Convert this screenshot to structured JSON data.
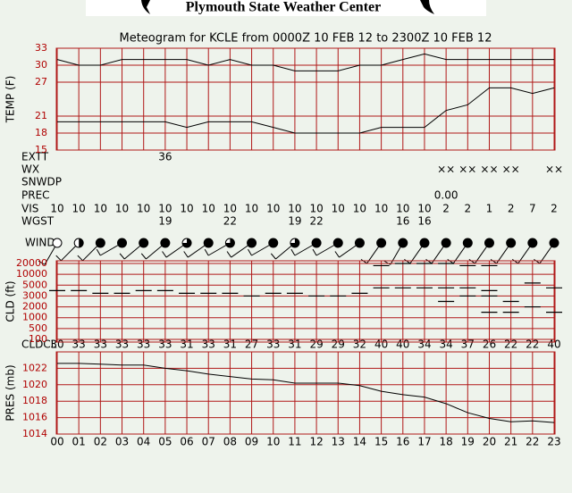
{
  "header": {
    "title": "Plymouth State Weather Center"
  },
  "title": "Meteogram for KCLE from 0000Z 10 FEB 12 to 2300Z 10 FEB 12",
  "categories": [
    "00",
    "01",
    "02",
    "03",
    "04",
    "05",
    "06",
    "07",
    "08",
    "09",
    "10",
    "11",
    "12",
    "13",
    "14",
    "15",
    "16",
    "17",
    "18",
    "19",
    "20",
    "21",
    "22",
    "23"
  ],
  "rows": [
    {
      "label": "EXTT",
      "values": [
        null,
        null,
        null,
        null,
        null,
        36,
        null,
        null,
        null,
        null,
        null,
        null,
        null,
        null,
        null,
        null,
        null,
        null,
        null,
        null,
        null,
        null,
        null,
        null
      ]
    },
    {
      "label": "WX",
      "values": [
        null,
        null,
        null,
        null,
        null,
        null,
        null,
        null,
        null,
        null,
        null,
        null,
        null,
        null,
        null,
        null,
        null,
        null,
        "××",
        "××",
        "××",
        "××",
        null,
        "××"
      ]
    },
    {
      "label": "SNWDP",
      "values": [
        null,
        null,
        null,
        null,
        null,
        null,
        null,
        null,
        null,
        null,
        null,
        null,
        null,
        null,
        null,
        null,
        null,
        null,
        null,
        null,
        null,
        null,
        null,
        null
      ]
    },
    {
      "label": "PREC",
      "values": [
        null,
        null,
        null,
        null,
        null,
        null,
        null,
        null,
        null,
        null,
        null,
        null,
        null,
        null,
        null,
        null,
        null,
        null,
        0,
        null,
        null,
        null,
        null,
        null
      ],
      "value_labels": [
        null,
        null,
        null,
        null,
        null,
        null,
        null,
        null,
        null,
        null,
        null,
        null,
        null,
        null,
        null,
        null,
        null,
        null,
        "0.00",
        null,
        null,
        null,
        null,
        null
      ]
    },
    {
      "label": "VIS",
      "values": [
        10,
        10,
        10,
        10,
        10,
        10,
        10,
        10,
        10,
        10,
        10,
        10,
        10,
        10,
        10,
        10,
        10,
        10,
        2,
        2,
        1,
        2,
        7,
        2
      ]
    },
    {
      "label": "WGST",
      "values": [
        null,
        null,
        null,
        null,
        null,
        19,
        null,
        null,
        22,
        null,
        null,
        19,
        22,
        null,
        null,
        null,
        16,
        16,
        null,
        null,
        null,
        null,
        null,
        null
      ]
    },
    {
      "label": "CLDCL",
      "values": [
        30,
        33,
        33,
        33,
        33,
        33,
        31,
        33,
        31,
        27,
        33,
        31,
        29,
        29,
        32,
        40,
        40,
        34,
        34,
        37,
        26,
        22,
        22,
        40
      ]
    }
  ],
  "chart_data": [
    {
      "type": "line",
      "ylabel": "TEMP (F)",
      "ylim": [
        15,
        33
      ],
      "yticks": [
        15,
        18,
        21,
        27,
        30,
        33
      ],
      "grid": true,
      "series": [
        {
          "color": "#000000",
          "values": [
            31,
            30,
            30,
            31,
            31,
            31,
            31,
            30,
            31,
            30,
            30,
            29,
            29,
            29,
            30,
            30,
            31,
            32,
            31,
            31,
            31,
            31,
            31,
            31
          ]
        },
        {
          "color": "#000000",
          "values": [
            20,
            20,
            20,
            20,
            20,
            20,
            19,
            20,
            20,
            20,
            19,
            18,
            18,
            18,
            18,
            19,
            19,
            19,
            22,
            23,
            26,
            26,
            25,
            26
          ]
        }
      ]
    },
    {
      "type": "wind",
      "label": "WIND",
      "sky_cover": [
        0,
        0.5,
        1,
        1,
        1,
        1,
        0.75,
        1,
        0.75,
        1,
        1,
        0.75,
        1,
        1,
        1,
        1,
        1,
        1,
        1,
        1,
        1,
        1,
        1,
        1
      ],
      "direction": [
        210,
        225,
        225,
        240,
        230,
        230,
        235,
        235,
        240,
        235,
        240,
        230,
        240,
        240,
        235,
        215,
        210,
        215,
        215,
        215,
        215,
        215,
        215,
        215
      ]
    },
    {
      "type": "cloud",
      "ylabel": "CLD (ft)",
      "ylim": [
        100,
        20000
      ],
      "yticks": [
        100,
        500,
        1000,
        2000,
        3000,
        5000,
        10000,
        20000
      ],
      "grid": true,
      "layers": [
        [
          4000
        ],
        [
          4000
        ],
        [
          3500
        ],
        [
          3500
        ],
        [
          4000
        ],
        [
          4000
        ],
        [
          3500
        ],
        [
          3500
        ],
        [
          3500
        ],
        [
          3000
        ],
        [
          3500
        ],
        [
          3500
        ],
        [
          3000
        ],
        [
          3000
        ],
        [
          3500
        ],
        [
          4500,
          18000
        ],
        [
          4500,
          20000
        ],
        [
          4500,
          20000
        ],
        [
          2500,
          4500,
          20000
        ],
        [
          3000,
          4500,
          18000
        ],
        [
          1500,
          3000,
          4000,
          18000
        ],
        [
          1500,
          2500
        ],
        [
          2000,
          6000
        ],
        [
          1500,
          4500
        ]
      ]
    },
    {
      "type": "line",
      "ylabel": "PRES (mb)",
      "ylim": [
        1014,
        1024
      ],
      "yticks": [
        1014,
        1016,
        1018,
        1020,
        1022
      ],
      "grid": true,
      "series": [
        {
          "color": "#000000",
          "values": [
            1022.6,
            1022.6,
            1022.5,
            1022.4,
            1022.4,
            1022.0,
            1021.7,
            1021.3,
            1021.0,
            1020.7,
            1020.6,
            1020.2,
            1020.2,
            1020.2,
            1019.9,
            1019.2,
            1018.8,
            1018.5,
            1017.7,
            1016.6,
            1015.9,
            1015.5,
            1015.6,
            1015.4
          ]
        }
      ]
    }
  ]
}
